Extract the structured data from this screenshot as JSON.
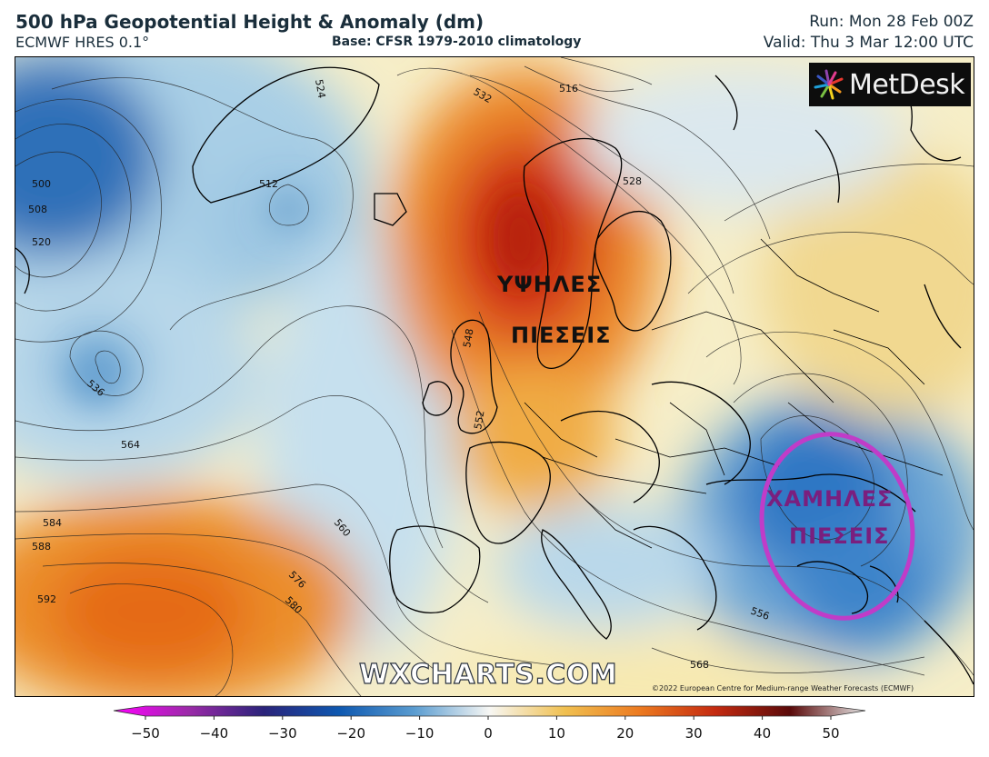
{
  "header": {
    "title": "500 hPa Geopotential Height & Anomaly (dm)",
    "model": "ECMWF HRES 0.1°",
    "base": "Base: CFSR 1979-2010 climatology",
    "run": "Run: Mon 28 Feb 00Z",
    "valid": "Valid: Thu 3 Mar 12:00 UTC"
  },
  "logo": {
    "text": "MetDesk",
    "icon": "metdesk-burst-icon"
  },
  "watermark": "WXCHARTS.COM",
  "copyright": "©2022 European Centre for Medium-range Weather Forecasts (ECMWF)",
  "annotations": {
    "high": [
      "ΥΨΗΛΕΣ",
      "ΠΙΕΣΕΙΣ"
    ],
    "low": [
      "ΧΑΜΗΛΕΣ",
      "ΠΙΕΣΕΙΣ"
    ],
    "low_circle_color": "#c03cc8"
  },
  "contour_labels": [
    "500",
    "508",
    "512",
    "516",
    "520",
    "524",
    "528",
    "532",
    "536",
    "548",
    "552",
    "556",
    "560",
    "564",
    "568",
    "576",
    "580",
    "584",
    "588",
    "592"
  ],
  "colorbar": {
    "min": -50,
    "max": 50,
    "ticks": [
      "−50",
      "−40",
      "−30",
      "−20",
      "−10",
      "0",
      "10",
      "20",
      "30",
      "40",
      "50"
    ],
    "colors": {
      "-50": "#ff00ff",
      "-40": "#9b2aa8",
      "-30": "#2a237a",
      "-20": "#0e58b0",
      "-10": "#5a9cd0",
      "0": "#f7f7f4",
      "10": "#f0c050",
      "20": "#ec7a20",
      "30": "#c42a10",
      "40": "#5a0a0a",
      "50": "#e8e8e8"
    }
  }
}
